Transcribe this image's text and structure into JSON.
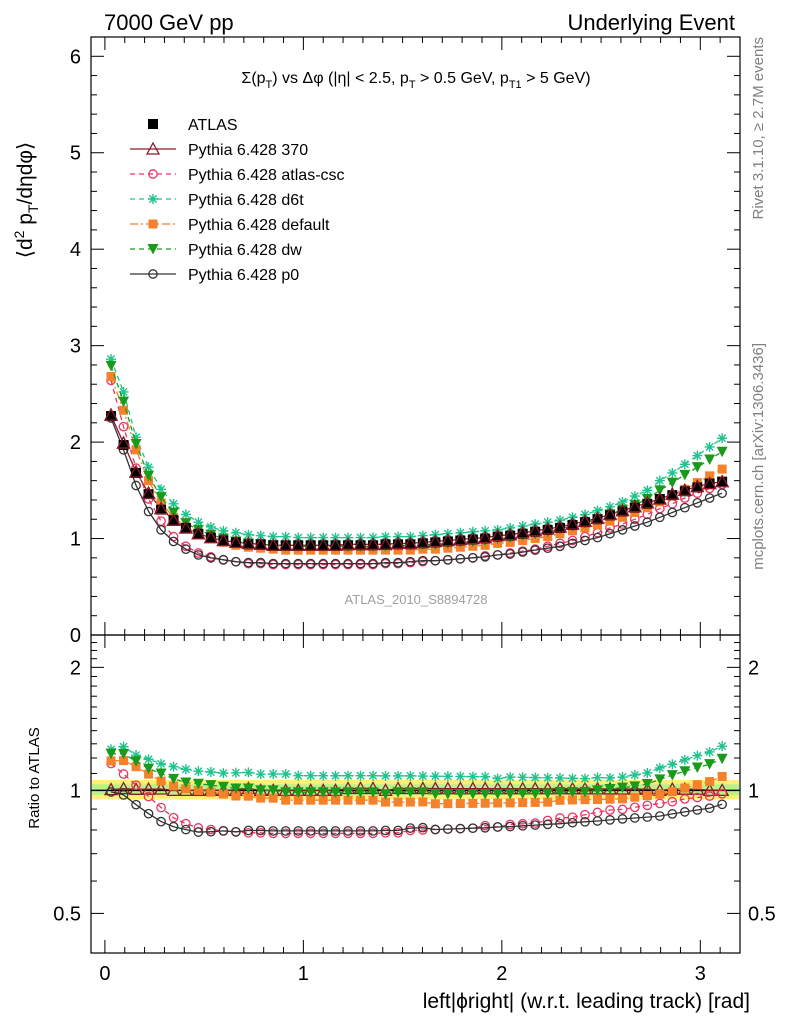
{
  "header": {
    "left": "7000 GeV pp",
    "right": "Underlying Event"
  },
  "side_labels": {
    "rivet": "Rivet 3.1.10, ≥ 2.7M events",
    "mcplots": "mcplots.cern.ch [arXiv:1306.3436]"
  },
  "plot_title": "Σ(p_T) vs Δφ (|η| < 2.5, p_T > 0.5 GeV, p_T1 > 5 GeV)",
  "plot_title_parts": {
    "a": "Σ(p",
    "a_sub": "T",
    "b": ") vs Δφ (|η| < 2.5, p",
    "b_sub": "T",
    "c": " > 0.5 GeV, p",
    "c_sub": "T1",
    "d": " > 5 GeV)"
  },
  "watermark": "ATLAS_2010_S8894728",
  "ylabel_main": "⟨d² p_T/dηdφ⟩",
  "ylabel_parts": {
    "a": "⟨d",
    "sup": "2",
    "b": " p",
    "sub": "T",
    "c": "/dηdφ⟩"
  },
  "ylabel_ratio": "Ratio to ATLAS",
  "xlabel": "left|ϕright| (w.r.t. leading track) [rad]",
  "main_y_ticks": [
    "0",
    "1",
    "2",
    "3",
    "4",
    "5",
    "6"
  ],
  "ratio_y_ticks": [
    "0.5",
    "1",
    "2"
  ],
  "ratio_y_ticks_right": [
    "0.5",
    "1",
    "2"
  ],
  "x_ticks": [
    "0",
    "1",
    "2",
    "3"
  ],
  "chart_data": {
    "type": "scatter",
    "title": "Σ(p_T) vs Δφ (|η| < 2.5, p_T > 0.5 GeV, p_T1 > 5 GeV)",
    "xlabel": "left|ϕright| (w.r.t. leading track) [rad]",
    "ylabel": "⟨d² p_T/dηdφ⟩",
    "xlim": [
      -0.07,
      3.2
    ],
    "ylim": [
      0,
      6.2
    ],
    "ratio_ylim": [
      0.4,
      2.4
    ],
    "ratio_log": true,
    "legend_position": "top-left",
    "x": [
      0.031,
      0.094,
      0.157,
      0.22,
      0.283,
      0.346,
      0.408,
      0.471,
      0.534,
      0.597,
      0.66,
      0.723,
      0.785,
      0.848,
      0.911,
      0.974,
      1.037,
      1.1,
      1.162,
      1.225,
      1.288,
      1.351,
      1.414,
      1.477,
      1.539,
      1.602,
      1.665,
      1.728,
      1.791,
      1.854,
      1.916,
      1.979,
      2.042,
      2.105,
      2.168,
      2.231,
      2.293,
      2.356,
      2.419,
      2.482,
      2.545,
      2.608,
      2.67,
      2.733,
      2.796,
      2.859,
      2.922,
      2.985,
      3.047,
      3.11
    ],
    "data": {
      "name": "ATLAS",
      "values": [
        2.27,
        1.97,
        1.68,
        1.46,
        1.3,
        1.19,
        1.11,
        1.05,
        1.01,
        0.98,
        0.96,
        0.94,
        0.94,
        0.93,
        0.93,
        0.93,
        0.93,
        0.93,
        0.93,
        0.93,
        0.93,
        0.93,
        0.94,
        0.94,
        0.94,
        0.95,
        0.96,
        0.97,
        0.98,
        0.99,
        1.0,
        1.02,
        1.03,
        1.05,
        1.07,
        1.09,
        1.11,
        1.14,
        1.17,
        1.2,
        1.24,
        1.28,
        1.32,
        1.36,
        1.41,
        1.45,
        1.49,
        1.53,
        1.57,
        1.59
      ],
      "color": "#000000"
    },
    "series": [
      {
        "name": "Pythia 6.428 370",
        "color": "#8b1a2b",
        "marker": "triangle-open",
        "line": "solid",
        "values": [
          2.28,
          1.99,
          1.69,
          1.47,
          1.31,
          1.19,
          1.11,
          1.05,
          1.01,
          0.98,
          0.96,
          0.95,
          0.94,
          0.93,
          0.93,
          0.93,
          0.93,
          0.93,
          0.93,
          0.94,
          0.94,
          0.94,
          0.94,
          0.95,
          0.95,
          0.96,
          0.97,
          0.98,
          0.99,
          1.0,
          1.01,
          1.03,
          1.04,
          1.06,
          1.08,
          1.1,
          1.12,
          1.15,
          1.18,
          1.21,
          1.25,
          1.29,
          1.33,
          1.37,
          1.41,
          1.46,
          1.5,
          1.54,
          1.57,
          1.59
        ]
      },
      {
        "name": "Pythia 6.428 atlas-csc",
        "color": "#ee3360",
        "marker": "circle-open",
        "line": "dashed",
        "values": [
          2.64,
          2.16,
          1.73,
          1.41,
          1.18,
          1.02,
          0.92,
          0.85,
          0.81,
          0.78,
          0.76,
          0.74,
          0.74,
          0.73,
          0.73,
          0.73,
          0.73,
          0.73,
          0.73,
          0.73,
          0.73,
          0.73,
          0.74,
          0.74,
          0.75,
          0.76,
          0.77,
          0.78,
          0.79,
          0.8,
          0.82,
          0.83,
          0.85,
          0.87,
          0.89,
          0.92,
          0.95,
          0.98,
          1.02,
          1.06,
          1.11,
          1.15,
          1.2,
          1.25,
          1.31,
          1.36,
          1.42,
          1.47,
          1.52,
          1.56
        ]
      },
      {
        "name": "Pythia 6.428 d6t",
        "color": "#1ec38d",
        "marker": "star",
        "line": "dashed",
        "values": [
          2.86,
          2.52,
          2.05,
          1.74,
          1.51,
          1.36,
          1.25,
          1.17,
          1.12,
          1.08,
          1.06,
          1.04,
          1.03,
          1.02,
          1.02,
          1.01,
          1.01,
          1.01,
          1.01,
          1.01,
          1.01,
          1.01,
          1.02,
          1.02,
          1.02,
          1.03,
          1.04,
          1.05,
          1.06,
          1.07,
          1.08,
          1.09,
          1.11,
          1.13,
          1.15,
          1.17,
          1.19,
          1.22,
          1.25,
          1.29,
          1.33,
          1.38,
          1.44,
          1.5,
          1.6,
          1.68,
          1.77,
          1.86,
          1.95,
          2.04
        ]
      },
      {
        "name": "Pythia 6.428 default",
        "color": "#f5822a",
        "marker": "square",
        "line": "dashdot",
        "values": [
          2.68,
          2.33,
          1.92,
          1.6,
          1.37,
          1.22,
          1.12,
          1.05,
          1.0,
          0.96,
          0.93,
          0.91,
          0.9,
          0.89,
          0.88,
          0.88,
          0.88,
          0.88,
          0.88,
          0.88,
          0.88,
          0.88,
          0.88,
          0.88,
          0.88,
          0.89,
          0.89,
          0.9,
          0.91,
          0.92,
          0.93,
          0.95,
          0.96,
          0.98,
          1.0,
          1.02,
          1.05,
          1.08,
          1.11,
          1.14,
          1.18,
          1.22,
          1.27,
          1.32,
          1.38,
          1.44,
          1.51,
          1.58,
          1.65,
          1.72
        ]
      },
      {
        "name": "Pythia 6.428 dw",
        "color": "#1a9a1a",
        "marker": "triangle-down",
        "line": "dashed",
        "values": [
          2.79,
          2.42,
          1.98,
          1.65,
          1.43,
          1.27,
          1.16,
          1.09,
          1.04,
          1.0,
          0.97,
          0.95,
          0.94,
          0.93,
          0.92,
          0.92,
          0.92,
          0.92,
          0.92,
          0.92,
          0.92,
          0.92,
          0.92,
          0.93,
          0.93,
          0.94,
          0.94,
          0.95,
          0.96,
          0.97,
          0.98,
          1.0,
          1.01,
          1.03,
          1.05,
          1.07,
          1.1,
          1.13,
          1.16,
          1.2,
          1.25,
          1.3,
          1.35,
          1.41,
          1.5,
          1.58,
          1.66,
          1.74,
          1.82,
          1.9
        ]
      },
      {
        "name": "Pythia 6.428 p0",
        "color": "#333333",
        "marker": "circle-open",
        "line": "solid",
        "values": [
          2.25,
          1.92,
          1.55,
          1.28,
          1.09,
          0.97,
          0.89,
          0.83,
          0.8,
          0.78,
          0.76,
          0.75,
          0.75,
          0.74,
          0.74,
          0.74,
          0.74,
          0.74,
          0.74,
          0.74,
          0.74,
          0.74,
          0.75,
          0.75,
          0.76,
          0.77,
          0.77,
          0.78,
          0.79,
          0.8,
          0.81,
          0.83,
          0.84,
          0.86,
          0.88,
          0.9,
          0.92,
          0.95,
          0.98,
          1.01,
          1.05,
          1.09,
          1.13,
          1.17,
          1.22,
          1.27,
          1.32,
          1.37,
          1.42,
          1.47
        ]
      }
    ]
  }
}
